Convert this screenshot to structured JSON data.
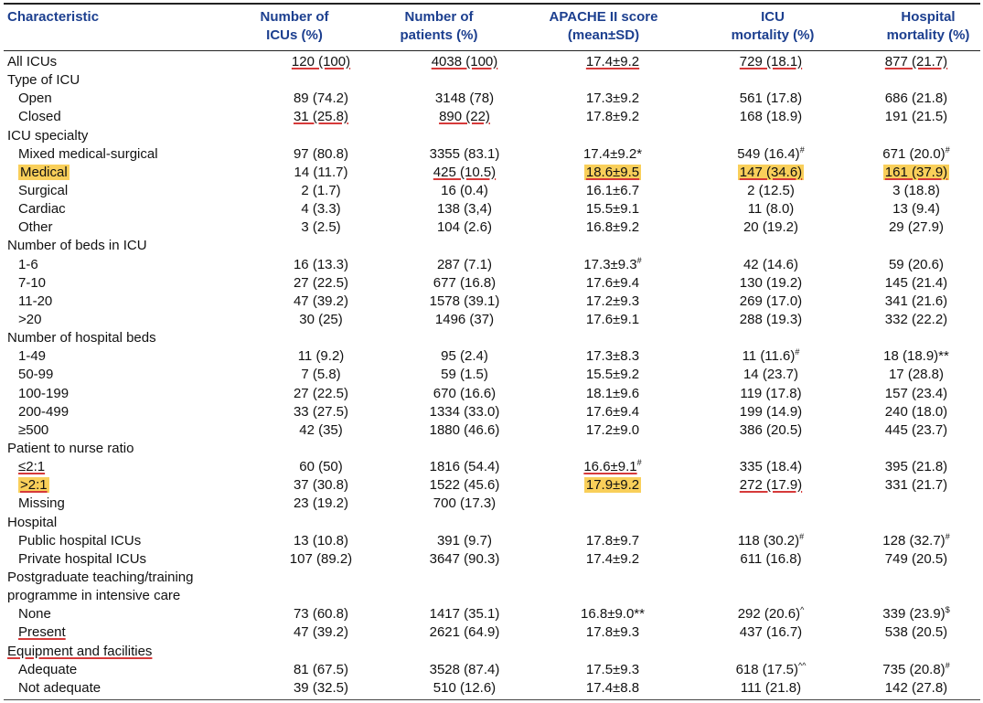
{
  "headers": [
    [
      "Characteristic",
      ""
    ],
    [
      "Number of",
      "ICUs (%)"
    ],
    [
      "Number of",
      "patients (%)"
    ],
    [
      "APACHE II score",
      "(mean±SD)"
    ],
    [
      "ICU",
      "mortality (%)"
    ],
    [
      "Hospital",
      "mortality (%)"
    ]
  ],
  "rows": [
    {
      "type": "data",
      "label": "All ICUs",
      "cells": [
        "120 (100)",
        "4038 (100)",
        "17.4±9.2",
        "729 (18.1)",
        "877 (21.7)"
      ],
      "ul": [
        1,
        2,
        3,
        4,
        5
      ]
    },
    {
      "type": "group",
      "label": "Type of ICU"
    },
    {
      "type": "data",
      "sub": true,
      "label": "Open",
      "cells": [
        "89 (74.2)",
        "3148 (78)",
        "17.3±9.2",
        "561 (17.8)",
        "686 (21.8)"
      ]
    },
    {
      "type": "data",
      "sub": true,
      "label": "Closed",
      "cells": [
        "31 (25.8)",
        "890 (22)",
        "17.8±9.2",
        "168 (18.9)",
        "191 (21.5)"
      ],
      "ul": [
        1,
        2
      ]
    },
    {
      "type": "group",
      "label": "ICU specialty"
    },
    {
      "type": "data",
      "sub": true,
      "label": "Mixed medical-surgical",
      "cells": [
        "97 (80.8)",
        "3355 (83.1)",
        "17.4±9.2*",
        "549 (16.4)",
        "671 (20.0)"
      ],
      "sup": {
        "4": "#",
        "5": "#"
      }
    },
    {
      "type": "data",
      "sub": true,
      "label": "Medical",
      "cells": [
        "14 (11.7)",
        "425 (10.5)",
        "18.6±9.5",
        "147 (34.6)",
        "161 (37.9)"
      ],
      "hl": [
        0,
        3,
        4,
        5
      ],
      "ul": [
        2,
        3,
        4,
        5
      ]
    },
    {
      "type": "data",
      "sub": true,
      "label": "Surgical",
      "cells": [
        "2 (1.7)",
        "16 (0.4)",
        "16.1±6.7",
        "2 (12.5)",
        "3 (18.8)"
      ]
    },
    {
      "type": "data",
      "sub": true,
      "label": "Cardiac",
      "cells": [
        "4 (3.3)",
        "138 (3,4)",
        "15.5±9.1",
        "11 (8.0)",
        "13 (9.4)"
      ]
    },
    {
      "type": "data",
      "sub": true,
      "label": "Other",
      "cells": [
        "3 (2.5)",
        "104 (2.6)",
        "16.8±9.2",
        "20 (19.2)",
        "29 (27.9)"
      ]
    },
    {
      "type": "group",
      "label": "Number of beds in ICU"
    },
    {
      "type": "data",
      "sub": true,
      "label": "1-6",
      "cells": [
        "16 (13.3)",
        "287 (7.1)",
        "17.3±9.3",
        "42 (14.6)",
        "59 (20.6)"
      ],
      "sup": {
        "3": "#"
      }
    },
    {
      "type": "data",
      "sub": true,
      "label": "7-10",
      "cells": [
        "27 (22.5)",
        "677 (16.8)",
        "17.6±9.4",
        "130 (19.2)",
        "145 (21.4)"
      ]
    },
    {
      "type": "data",
      "sub": true,
      "label": "11-20",
      "cells": [
        "47 (39.2)",
        "1578 (39.1)",
        "17.2±9.3",
        "269 (17.0)",
        "341 (21.6)"
      ]
    },
    {
      "type": "data",
      "sub": true,
      "label": ">20",
      "cells": [
        "30 (25)",
        "1496 (37)",
        "17.6±9.1",
        "288 (19.3)",
        "332 (22.2)"
      ]
    },
    {
      "type": "group",
      "label": "Number of hospital beds"
    },
    {
      "type": "data",
      "sub": true,
      "label": "1-49",
      "cells": [
        "11 (9.2)",
        "95 (2.4)",
        "17.3±8.3",
        "11 (11.6)",
        "18 (18.9)**"
      ],
      "sup": {
        "4": "#"
      }
    },
    {
      "type": "data",
      "sub": true,
      "label": "50-99",
      "cells": [
        "7 (5.8)",
        "59 (1.5)",
        "15.5±9.2",
        "14 (23.7)",
        "17 (28.8)"
      ]
    },
    {
      "type": "data",
      "sub": true,
      "label": "100-199",
      "cells": [
        "27 (22.5)",
        "670 (16.6)",
        "18.1±9.6",
        "119 (17.8)",
        "157 (23.4)"
      ]
    },
    {
      "type": "data",
      "sub": true,
      "label": "200-499",
      "cells": [
        "33 (27.5)",
        "1334 (33.0)",
        "17.6±9.4",
        "199 (14.9)",
        "240 (18.0)"
      ]
    },
    {
      "type": "data",
      "sub": true,
      "label": "≥500",
      "cells": [
        "42 (35)",
        "1880 (46.6)",
        "17.2±9.0",
        "386 (20.5)",
        "445 (23.7)"
      ]
    },
    {
      "type": "group",
      "label": "Patient to nurse ratio"
    },
    {
      "type": "data",
      "sub": true,
      "label": "≤2:1",
      "cells": [
        "60 (50)",
        "1816 (54.4)",
        "16.6±9.1",
        "335 (18.4)",
        "395 (21.8)"
      ],
      "sup": {
        "3": "#"
      },
      "ul": [
        0,
        3
      ]
    },
    {
      "type": "data",
      "sub": true,
      "label": ">2:1",
      "cells": [
        "37 (30.8)",
        "1522 (45.6)",
        "17.9±9.2",
        "272 (17.9)",
        "331 (21.7)"
      ],
      "hl": [
        0,
        3
      ],
      "ul": [
        0,
        4
      ]
    },
    {
      "type": "data",
      "sub": true,
      "label": "Missing",
      "cells": [
        "23 (19.2)",
        "700 (17.3)",
        "",
        "",
        ""
      ]
    },
    {
      "type": "group",
      "label": "Hospital"
    },
    {
      "type": "data",
      "sub": true,
      "label": "Public hospital ICUs",
      "cells": [
        "13 (10.8)",
        "391 (9.7)",
        "17.8±9.7",
        "118 (30.2)",
        "128 (32.7)"
      ],
      "sup": {
        "4": "#",
        "5": "#"
      }
    },
    {
      "type": "data",
      "sub": true,
      "label": "Private hospital ICUs",
      "cells": [
        "107 (89.2)",
        "3647 (90.3)",
        "17.4±9.2",
        "611 (16.8)",
        "749 (20.5)"
      ]
    },
    {
      "type": "group",
      "label": "Postgraduate teaching/training"
    },
    {
      "type": "group",
      "label": "programme in intensive care"
    },
    {
      "type": "data",
      "sub": true,
      "label": "None",
      "cells": [
        "73 (60.8)",
        "1417 (35.1)",
        "16.8±9.0**",
        "292 (20.6)",
        "339 (23.9)"
      ],
      "sup": {
        "4": "^",
        "5": "$"
      }
    },
    {
      "type": "data",
      "sub": true,
      "label": "Present",
      "cells": [
        "47 (39.2)",
        "2621 (64.9)",
        "17.8±9.3",
        "437 (16.7)",
        "538 (20.5)"
      ],
      "ul": [
        0
      ]
    },
    {
      "type": "group",
      "label": "Equipment and facilities",
      "ul": [
        0
      ]
    },
    {
      "type": "data",
      "sub": true,
      "label": "Adequate",
      "cells": [
        "81 (67.5)",
        "3528 (87.4)",
        "17.5±9.3",
        "618 (17.5)",
        "735 (20.8)"
      ],
      "sup": {
        "4": "^^",
        "5": "#"
      }
    },
    {
      "type": "data",
      "sub": true,
      "label": "Not adequate",
      "cells": [
        "39 (32.5)",
        "510 (12.6)",
        "17.4±8.8",
        "111 (21.8)",
        "142 (27.8)"
      ]
    }
  ]
}
